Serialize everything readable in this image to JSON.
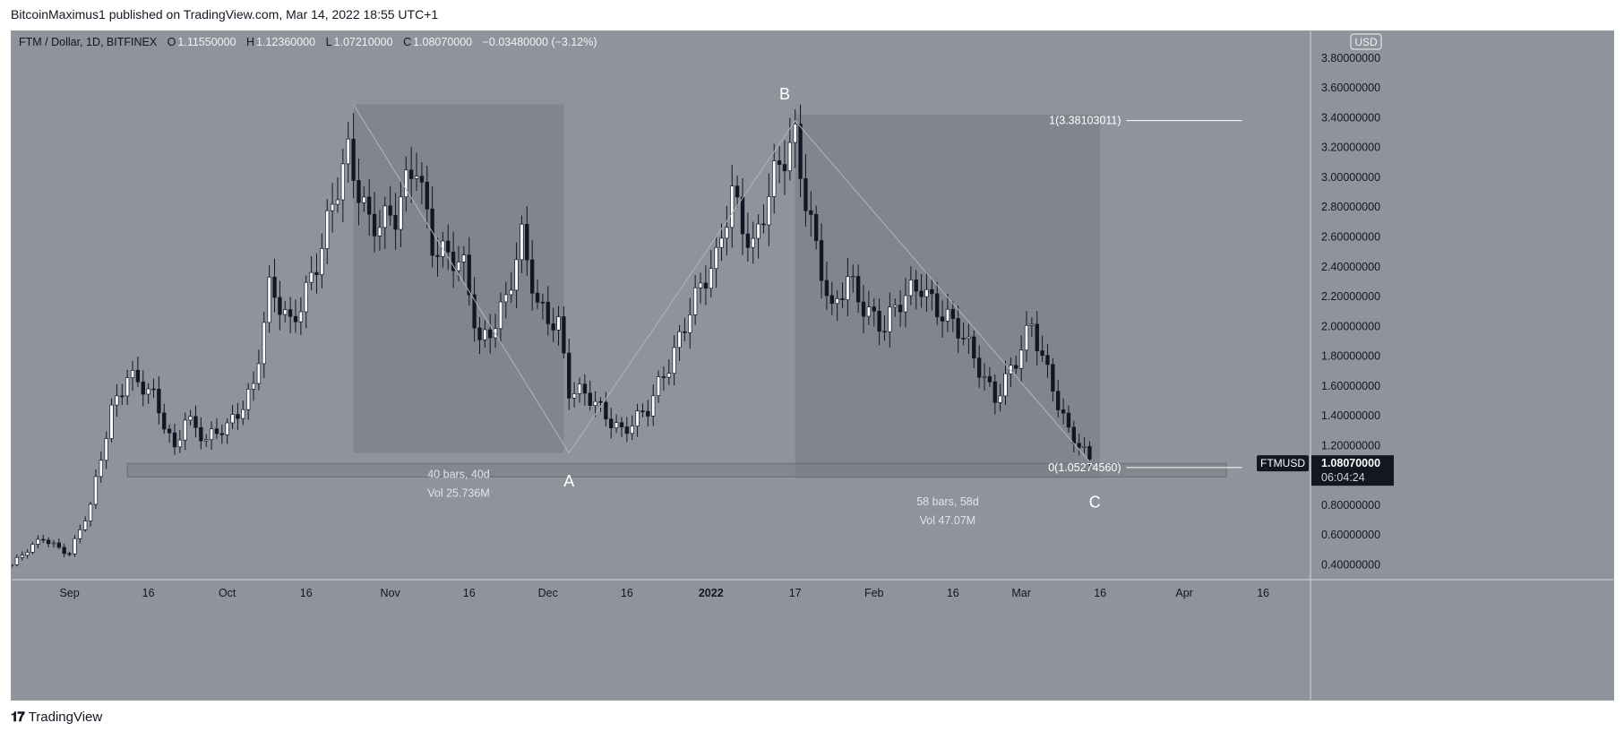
{
  "publisher_line": "BitcoinMaximus1 published on TradingView.com, Mar 14, 2022 18:55 UTC+1",
  "footer_brand": "TradingView",
  "colors": {
    "background": "#8f939c",
    "panel": "#80838b",
    "candle_up": "#ffffff",
    "candle_down": "#131722",
    "text_light": "#f5f5f5",
    "label_dark": "#131722"
  },
  "chart_data": {
    "type": "candlestick",
    "symbol_line": {
      "name": "FTM / Dollar, 1D, BITFINEX",
      "o_label": "O",
      "o_value": "1.11550000",
      "h_label": "H",
      "h_value": "1.12360000",
      "l_label": "L",
      "l_value": "1.07210000",
      "c_label": "C",
      "c_value": "1.08070000",
      "change": "−0.03480000 (−3.12%)"
    },
    "currency_label": "USD",
    "y_axis_ticks": [
      "3.80000000",
      "3.60000000",
      "3.40000000",
      "3.20000000",
      "3.00000000",
      "2.80000000",
      "2.60000000",
      "2.40000000",
      "2.20000000",
      "2.00000000",
      "1.80000000",
      "1.60000000",
      "1.40000000",
      "1.20000000",
      "0.80000000",
      "0.60000000",
      "0.40000000"
    ],
    "y_tick_values": [
      3.8,
      3.6,
      3.4,
      3.2,
      3.0,
      2.8,
      2.6,
      2.4,
      2.2,
      2.0,
      1.8,
      1.6,
      1.4,
      1.2,
      0.8,
      0.6,
      0.4
    ],
    "ylim": [
      0.3,
      3.98
    ],
    "x_axis_ticks": [
      {
        "label": "Sep",
        "date": "2021-09-01"
      },
      {
        "label": "16",
        "date": "2021-09-16"
      },
      {
        "label": "Oct",
        "date": "2021-10-01"
      },
      {
        "label": "16",
        "date": "2021-10-16"
      },
      {
        "label": "Nov",
        "date": "2021-11-01"
      },
      {
        "label": "16",
        "date": "2021-11-16"
      },
      {
        "label": "Dec",
        "date": "2021-12-01"
      },
      {
        "label": "16",
        "date": "2021-12-16"
      },
      {
        "label": "2022",
        "date": "2022-01-01"
      },
      {
        "label": "17",
        "date": "2022-01-17"
      },
      {
        "label": "Feb",
        "date": "2022-02-01"
      },
      {
        "label": "16",
        "date": "2022-02-16"
      },
      {
        "label": "Mar",
        "date": "2022-03-01"
      },
      {
        "label": "16",
        "date": "2022-03-16"
      },
      {
        "label": "Apr",
        "date": "2022-04-01"
      },
      {
        "label": "16",
        "date": "2022-04-16"
      }
    ],
    "xlim": [
      "2021-08-21",
      "2022-04-25"
    ],
    "price_path": [
      [
        "2021-08-21",
        0.4
      ],
      [
        "2021-08-27",
        0.58
      ],
      [
        "2021-09-01",
        0.48
      ],
      [
        "2021-09-05",
        0.78
      ],
      [
        "2021-09-09",
        1.45
      ],
      [
        "2021-09-12",
        1.7
      ],
      [
        "2021-09-17",
        1.5
      ],
      [
        "2021-09-21",
        1.18
      ],
      [
        "2021-09-23",
        1.42
      ],
      [
        "2021-09-27",
        1.22
      ],
      [
        "2021-10-01",
        1.32
      ],
      [
        "2021-10-06",
        1.62
      ],
      [
        "2021-10-09",
        2.22
      ],
      [
        "2021-10-13",
        2.0
      ],
      [
        "2021-10-19",
        2.55
      ],
      [
        "2021-10-24",
        3.12
      ],
      [
        "2021-10-28",
        2.75
      ],
      [
        "2021-11-02",
        2.7
      ],
      [
        "2021-11-06",
        3.1
      ],
      [
        "2021-11-09",
        2.6
      ],
      [
        "2021-11-15",
        2.35
      ],
      [
        "2021-11-18",
        1.88
      ],
      [
        "2021-11-23",
        2.2
      ],
      [
        "2021-11-26",
        2.55
      ],
      [
        "2021-11-29",
        2.12
      ],
      [
        "2021-12-03",
        2.05
      ],
      [
        "2021-12-05",
        1.58
      ],
      [
        "2021-12-08",
        1.52
      ],
      [
        "2021-12-15",
        1.32
      ],
      [
        "2021-12-20",
        1.42
      ],
      [
        "2021-12-24",
        1.75
      ],
      [
        "2021-12-28",
        2.15
      ],
      [
        "2022-01-02",
        2.4
      ],
      [
        "2022-01-05",
        2.92
      ],
      [
        "2022-01-09",
        2.55
      ],
      [
        "2022-01-13",
        2.95
      ],
      [
        "2022-01-17",
        3.28
      ],
      [
        "2022-01-21",
        2.55
      ],
      [
        "2022-01-24",
        2.05
      ],
      [
        "2022-01-27",
        2.3
      ],
      [
        "2022-02-03",
        2.0
      ],
      [
        "2022-02-10",
        2.3
      ],
      [
        "2022-02-17",
        1.95
      ],
      [
        "2022-02-24",
        1.55
      ],
      [
        "2022-02-28",
        1.75
      ],
      [
        "2022-03-03",
        1.98
      ],
      [
        "2022-03-07",
        1.62
      ],
      [
        "2022-03-10",
        1.3
      ],
      [
        "2022-03-14",
        1.08
      ]
    ],
    "rect_1": {
      "start": "2021-10-25",
      "end": "2021-12-04",
      "high": 3.49,
      "low": 1.15,
      "bars_label": "40 bars, 40d",
      "vol_label": "Vol 25.736M"
    },
    "rect_2": {
      "start": "2022-01-17",
      "end": "2022-03-16",
      "high": 3.42,
      "low": 0.98,
      "bars_label": "58 bars, 58d",
      "vol_label": "Vol 47.07M"
    },
    "support_zone": {
      "start": "2021-09-12",
      "end": "2022-04-09",
      "high": 1.08,
      "low": 0.99
    },
    "wave_labels": [
      {
        "text": "A",
        "date": "2021-12-05",
        "price": 0.96
      },
      {
        "text": "B",
        "date": "2022-01-15",
        "price": 3.56
      },
      {
        "text": "C",
        "date": "2022-03-15",
        "price": 0.82
      }
    ],
    "wave_path": [
      [
        "2021-10-25",
        3.49
      ],
      [
        "2021-12-05",
        1.15
      ],
      [
        "2022-01-17",
        3.38
      ],
      [
        "2022-03-15",
        1.05
      ]
    ],
    "fib_levels": [
      {
        "text": "1(3.38103011)",
        "price": 3.381,
        "line_start": "2022-03-21",
        "line_end": "2022-04-12"
      },
      {
        "text": "0(1.05274560)",
        "price": 1.0527,
        "line_start": "2022-03-21",
        "line_end": "2022-04-12"
      }
    ],
    "last_price": {
      "symbol": "FTMUSD",
      "price_text": "1.08070000",
      "price": 1.0807,
      "countdown": "06:04:24"
    }
  }
}
